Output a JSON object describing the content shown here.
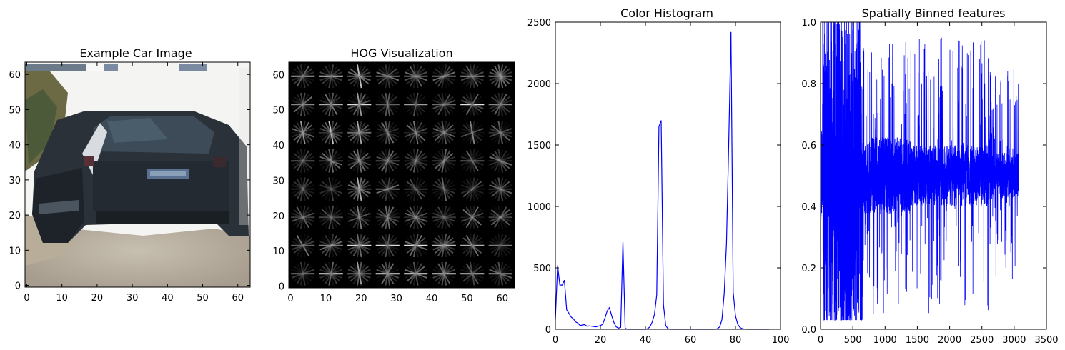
{
  "figure": {
    "panels": [
      {
        "title": "Example Car Image"
      },
      {
        "title": "HOG Visualization"
      },
      {
        "title": "Color Histogram"
      },
      {
        "title": "Spatially Binned features"
      }
    ]
  },
  "chart_data": [
    {
      "type": "image",
      "title": "Example Car Image",
      "xlim": [
        -0.5,
        63.5
      ],
      "ylim": [
        63.5,
        -0.5
      ],
      "xticks": [
        0,
        10,
        20,
        30,
        40,
        50,
        60
      ],
      "yticks": [
        0,
        10,
        20,
        30,
        40,
        50,
        60
      ],
      "xlabel": "",
      "ylabel": ""
    },
    {
      "type": "image",
      "title": "HOG Visualization",
      "xlim": [
        -0.5,
        63.5
      ],
      "ylim": [
        63.5,
        -0.5
      ],
      "xticks": [
        0,
        10,
        20,
        30,
        40,
        50,
        60
      ],
      "yticks": [
        0,
        10,
        20,
        30,
        40,
        50,
        60
      ],
      "xlabel": "",
      "ylabel": ""
    },
    {
      "type": "line",
      "title": "Color Histogram",
      "xlim": [
        0,
        100
      ],
      "ylim": [
        0,
        2500
      ],
      "xticks": [
        0,
        20,
        40,
        60,
        80,
        100
      ],
      "yticks": [
        0,
        500,
        1000,
        1500,
        2000,
        2500
      ],
      "xlabel": "",
      "ylabel": "",
      "color": "#0000ff",
      "x": [
        0,
        1,
        2,
        3,
        4,
        5,
        6,
        7,
        8,
        9,
        10,
        11,
        12,
        13,
        14,
        15,
        16,
        17,
        18,
        19,
        20,
        21,
        22,
        23,
        24,
        25,
        26,
        27,
        28,
        29,
        30,
        31,
        32,
        33,
        34,
        35,
        36,
        37,
        38,
        39,
        40,
        41,
        42,
        43,
        44,
        45,
        46,
        47,
        48,
        49,
        50,
        51,
        52,
        53,
        54,
        55,
        56,
        57,
        58,
        59,
        60,
        61,
        62,
        63,
        64,
        65,
        66,
        67,
        68,
        69,
        70,
        71,
        72,
        73,
        74,
        75,
        76,
        77,
        78,
        79,
        80,
        81,
        82,
        83,
        84,
        85,
        86,
        87,
        88,
        89,
        90,
        91,
        92,
        93,
        94,
        95
      ],
      "y": [
        80,
        520,
        360,
        360,
        400,
        160,
        130,
        100,
        85,
        60,
        50,
        30,
        35,
        38,
        25,
        28,
        25,
        22,
        20,
        25,
        30,
        40,
        90,
        150,
        175,
        110,
        55,
        20,
        10,
        15,
        710,
        8,
        0,
        0,
        0,
        0,
        0,
        0,
        0,
        0,
        0,
        5,
        20,
        60,
        120,
        280,
        1650,
        1700,
        200,
        30,
        5,
        0,
        0,
        0,
        0,
        0,
        0,
        0,
        0,
        0,
        0,
        0,
        0,
        0,
        0,
        0,
        0,
        0,
        0,
        0,
        0,
        0,
        5,
        20,
        80,
        300,
        700,
        1500,
        2420,
        300,
        110,
        40,
        15,
        5,
        2,
        0,
        0,
        0,
        0,
        0,
        0,
        0,
        0,
        0,
        0,
        0
      ]
    },
    {
      "type": "line",
      "title": "Spatially Binned features",
      "xlim": [
        0,
        3500
      ],
      "ylim": [
        0,
        1.0
      ],
      "xticks": [
        0,
        500,
        1000,
        1500,
        2000,
        2500,
        3000,
        3500
      ],
      "yticks": [
        0.0,
        0.2,
        0.4,
        0.6,
        0.8,
        1.0
      ],
      "xlabel": "",
      "ylabel": "",
      "color": "#0000ff",
      "n_points": 3072
    }
  ]
}
